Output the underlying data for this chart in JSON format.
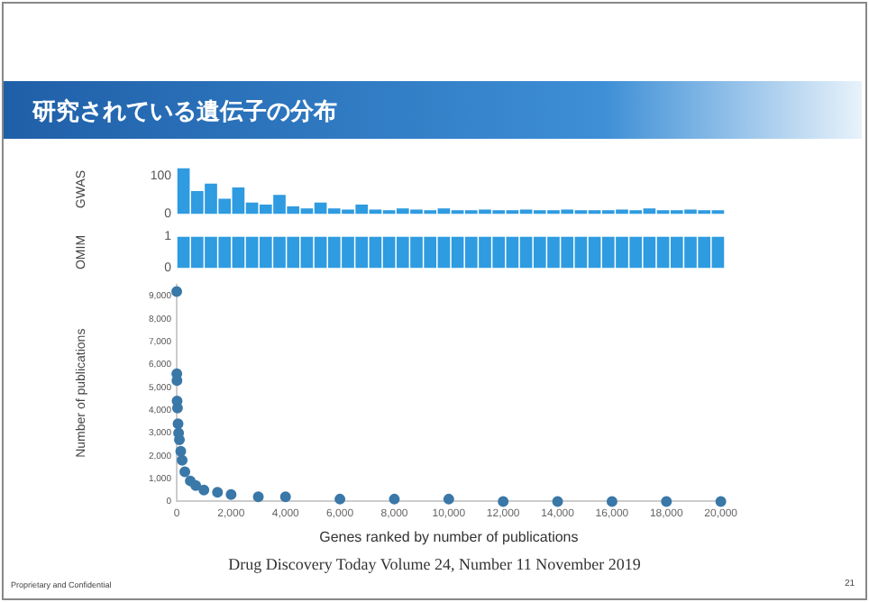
{
  "chart_data": [
    {
      "type": "bar",
      "title": "研究されている遺伝子の分布",
      "ylabel": "GWAS",
      "color": "#2f9be0",
      "tick_labels": "y",
      "categories": [
        null,
        null,
        null,
        null,
        null,
        null,
        null,
        null,
        null,
        null,
        null,
        null,
        null,
        null,
        null,
        null,
        null,
        null,
        null,
        null,
        null,
        null,
        null,
        null,
        null,
        null,
        null,
        null,
        null,
        null,
        null,
        null,
        null,
        null,
        null,
        null,
        null,
        null,
        null,
        null
      ],
      "values": [
        120,
        60,
        80,
        40,
        70,
        30,
        25,
        50,
        20,
        15,
        30,
        15,
        12,
        25,
        12,
        10,
        15,
        12,
        10,
        15,
        10,
        10,
        12,
        10,
        10,
        12,
        10,
        10,
        12,
        10,
        10,
        10,
        12,
        10,
        15,
        10,
        10,
        12,
        10,
        10
      ],
      "ylim": [
        0,
        130
      ],
      "yticks": [
        0,
        100
      ]
    },
    {
      "type": "bar",
      "ylabel": "OMIM",
      "color": "#2f9be0",
      "tick_labels": "y",
      "categories": [
        null,
        null,
        null,
        null,
        null,
        null,
        null,
        null,
        null,
        null,
        null,
        null,
        null,
        null,
        null,
        null,
        null,
        null,
        null,
        null,
        null,
        null,
        null,
        null,
        null,
        null,
        null,
        null,
        null,
        null,
        null,
        null,
        null,
        null,
        null,
        null,
        null,
        null,
        null,
        null
      ],
      "values": [
        1,
        1,
        1,
        1,
        1,
        1,
        1,
        1,
        1,
        1,
        1,
        1,
        1,
        1,
        1,
        1,
        1,
        1,
        1,
        1,
        1,
        1,
        1,
        1,
        1,
        1,
        1,
        1,
        1,
        1,
        1,
        1,
        1,
        1,
        1,
        1,
        1,
        1,
        1,
        1
      ],
      "ylim": [
        0,
        1
      ],
      "yticks": [
        0,
        1
      ]
    },
    {
      "type": "scatter",
      "ylabel": "Number of publications",
      "xlabel": "Genes ranked by number of publications",
      "color": "#3a78a8",
      "marker": "circle",
      "x": [
        1,
        5,
        10,
        15,
        30,
        50,
        70,
        100,
        150,
        200,
        300,
        500,
        700,
        1000,
        1500,
        2000,
        3000,
        4000,
        6000,
        8000,
        10000,
        12000,
        14000,
        16000,
        18000,
        20000
      ],
      "values": [
        9200,
        5600,
        5300,
        4400,
        4100,
        3400,
        3000,
        2700,
        2200,
        1800,
        1300,
        900,
        700,
        500,
        400,
        300,
        200,
        200,
        100,
        100,
        100,
        0,
        0,
        0,
        0,
        0
      ],
      "xlim": [
        0,
        20000
      ],
      "ylim": [
        0,
        9500
      ],
      "xticks": [
        0,
        {
          "value": 2000,
          "label": "2,000"
        },
        {
          "value": 4000,
          "label": "4,000"
        },
        {
          "value": 6000,
          "label": "6,000"
        },
        {
          "value": 8000,
          "label": "8,000"
        },
        {
          "value": 10000,
          "label": "10,000"
        },
        {
          "value": 12000,
          "label": "12,000"
        },
        {
          "value": 14000,
          "label": "14,000"
        },
        {
          "value": 16000,
          "label": "16,000"
        },
        {
          "value": 18000,
          "label": "18,000"
        },
        {
          "value": 20000,
          "label": "20,000"
        }
      ],
      "yticks": [
        0,
        {
          "value": 1000,
          "label": "1,000"
        },
        {
          "value": 2000,
          "label": "2,000"
        },
        {
          "value": 3000,
          "label": "3,000"
        },
        {
          "value": 4000,
          "label": "4,000"
        },
        {
          "value": 5000,
          "label": "5,000"
        },
        {
          "value": 6000,
          "label": "6,000"
        },
        {
          "value": 7000,
          "label": "7,000"
        },
        {
          "value": 8000,
          "label": "8,000"
        },
        {
          "value": 9000,
          "label": "9,000"
        }
      ],
      "annotations": [
        "Drug Discovery Today  Volume 24, Number 11  November 2019",
        "Proprietary and Confidential",
        "21"
      ]
    }
  ]
}
